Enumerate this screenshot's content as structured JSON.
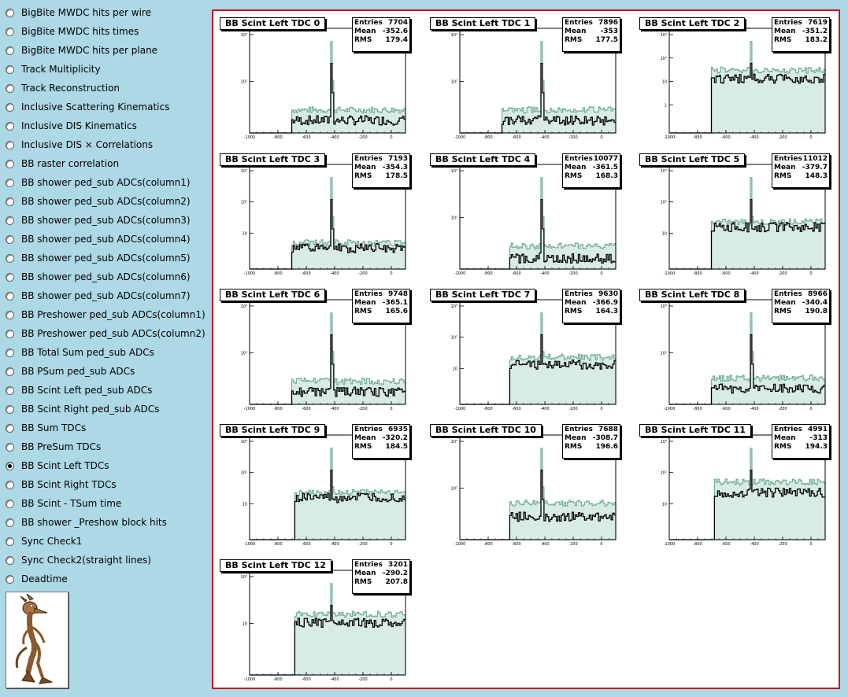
{
  "sidebar": {
    "items": [
      {
        "label": "BigBite MWDC hits per wire",
        "checked": false
      },
      {
        "label": "BigBite MWDC hits times",
        "checked": false
      },
      {
        "label": "BigBite MWDC hits per plane",
        "checked": false
      },
      {
        "label": "Track Multiplicity",
        "checked": false
      },
      {
        "label": "Track Reconstruction",
        "checked": false
      },
      {
        "label": "Inclusive Scattering Kinematics",
        "checked": false
      },
      {
        "label": "Inclusive DIS Kinematics",
        "checked": false
      },
      {
        "label": "Inclusive DIS × Correlations",
        "checked": false
      },
      {
        "label": "BB raster correlation",
        "checked": false
      },
      {
        "label": "BB shower ped_sub ADCs(column1)",
        "checked": false
      },
      {
        "label": "BB shower ped_sub ADCs(column2)",
        "checked": false
      },
      {
        "label": "BB shower ped_sub ADCs(column3)",
        "checked": false
      },
      {
        "label": "BB shower ped_sub ADCs(column4)",
        "checked": false
      },
      {
        "label": "BB shower ped_sub ADCs(column5)",
        "checked": false
      },
      {
        "label": "BB shower ped_sub ADCs(column6)",
        "checked": false
      },
      {
        "label": "BB shower ped_sub ADCs(column7)",
        "checked": false
      },
      {
        "label": "BB Preshower ped_sub ADCs(column1)",
        "checked": false
      },
      {
        "label": "BB Preshower ped_sub ADCs(column2)",
        "checked": false
      },
      {
        "label": "BB Total Sum ped_sub ADCs",
        "checked": false
      },
      {
        "label": "BB PSum ped_sub ADCs",
        "checked": false
      },
      {
        "label": "BB Scint Left ped_sub ADCs",
        "checked": false
      },
      {
        "label": "BB Scint Right ped_sub ADCs",
        "checked": false
      },
      {
        "label": "BB Sum TDCs",
        "checked": false
      },
      {
        "label": "BB PreSum TDCs",
        "checked": false
      },
      {
        "label": "BB Scint Left TDCs",
        "checked": true
      },
      {
        "label": "BB Scint Right TDCs",
        "checked": false
      },
      {
        "label": "BB Scint - TSum time",
        "checked": false
      },
      {
        "label": "BB shower _Preshow block hits",
        "checked": false
      },
      {
        "label": "Sync Check1",
        "checked": false
      },
      {
        "label": "Sync Check2(straight lines)",
        "checked": false
      },
      {
        "label": "Deadtime",
        "checked": false
      }
    ]
  },
  "logo_icon": "coyote-cartoon-icon",
  "stats_labels": {
    "entries": "Entries",
    "mean": "Mean",
    "rms": "RMS"
  },
  "x_ticks": [
    "-1000",
    "-800",
    "-600",
    "-400",
    "-200",
    "0"
  ],
  "colors": {
    "canvas_border": "#c8141e",
    "background": "#add8e6",
    "fill_hist": "#6aa88c",
    "line_hist": "#000000"
  },
  "chart_data": [
    {
      "type": "histogram",
      "title": "BB Scint Left TDC 0",
      "entries": "7704",
      "mean": "-352.6",
      "rms": "179.4",
      "xlim": [
        -1000,
        100
      ],
      "y_ticks": [
        "10³",
        "10²"
      ],
      "log_y": true,
      "onset": -700,
      "peak": -420,
      "fill_level": 0.22,
      "line_level": 0.12
    },
    {
      "type": "histogram",
      "title": "BB Scint Left TDC 1",
      "entries": "7896",
      "mean": "-353",
      "rms": "177.5",
      "xlim": [
        -1000,
        100
      ],
      "y_ticks": [
        "10³",
        "10²"
      ],
      "log_y": true,
      "onset": -700,
      "peak": -420,
      "fill_level": 0.22,
      "line_level": 0.12
    },
    {
      "type": "histogram",
      "title": "BB Scint Left TDC 2",
      "entries": "7619",
      "mean": "-351.2",
      "rms": "183.2",
      "xlim": [
        -1000,
        100
      ],
      "y_ticks": [
        "10³",
        "10²",
        "10",
        "1"
      ],
      "log_y": true,
      "onset": -700,
      "peak": -420,
      "fill_level": 0.6,
      "line_level": 0.52
    },
    {
      "type": "histogram",
      "title": "BB Scint Left TDC 3",
      "entries": "7193",
      "mean": "-354.3",
      "rms": "178.5",
      "xlim": [
        -1000,
        100
      ],
      "y_ticks": [
        "10³",
        "10²",
        "10"
      ],
      "log_y": true,
      "onset": -700,
      "peak": -420,
      "fill_level": 0.25,
      "line_level": 0.2
    },
    {
      "type": "histogram",
      "title": "BB Scint Left TDC 4",
      "entries": "10077",
      "mean": "-361.5",
      "rms": "168.3",
      "xlim": [
        -1000,
        100
      ],
      "y_ticks": [
        "10³",
        "10²"
      ],
      "log_y": true,
      "onset": -650,
      "peak": -420,
      "fill_level": 0.22,
      "line_level": 0.1
    },
    {
      "type": "histogram",
      "title": "BB Scint Left TDC 5",
      "entries": "11012",
      "mean": "-379.7",
      "rms": "148.3",
      "xlim": [
        -1000,
        100
      ],
      "y_ticks": [
        "10³",
        "10²",
        "10"
      ],
      "log_y": true,
      "onset": -700,
      "peak": -420,
      "fill_level": 0.45,
      "line_level": 0.4
    },
    {
      "type": "histogram",
      "title": "BB Scint Left TDC 6",
      "entries": "9748",
      "mean": "-365.1",
      "rms": "165.6",
      "xlim": [
        -1000,
        100
      ],
      "y_ticks": [
        "10³",
        "10²"
      ],
      "log_y": true,
      "onset": -700,
      "peak": -420,
      "fill_level": 0.22,
      "line_level": 0.12
    },
    {
      "type": "histogram",
      "title": "BB Scint Left TDC 7",
      "entries": "9630",
      "mean": "-366.9",
      "rms": "164.3",
      "xlim": [
        -1000,
        100
      ],
      "y_ticks": [
        "10³",
        "10²",
        "10"
      ],
      "log_y": true,
      "onset": -650,
      "peak": -420,
      "fill_level": 0.45,
      "line_level": 0.38
    },
    {
      "type": "histogram",
      "title": "BB Scint Left TDC 8",
      "entries": "8966",
      "mean": "-340.4",
      "rms": "190.8",
      "xlim": [
        -1000,
        100
      ],
      "y_ticks": [
        "10³",
        "10²"
      ],
      "log_y": true,
      "onset": -700,
      "peak": -420,
      "fill_level": 0.25,
      "line_level": 0.15
    },
    {
      "type": "histogram",
      "title": "BB Scint Left TDC 9",
      "entries": "6935",
      "mean": "-320.2",
      "rms": "184.5",
      "xlim": [
        -1000,
        100
      ],
      "y_ticks": [
        "10³",
        "10²",
        "10"
      ],
      "log_y": true,
      "onset": -680,
      "peak": -420,
      "fill_level": 0.45,
      "line_level": 0.4
    },
    {
      "type": "histogram",
      "title": "BB Scint Left TDC 10",
      "entries": "7688",
      "mean": "-308.7",
      "rms": "196.6",
      "xlim": [
        -1000,
        100
      ],
      "y_ticks": [
        "10³",
        "10²"
      ],
      "log_y": true,
      "onset": -650,
      "peak": -420,
      "fill_level": 0.35,
      "line_level": 0.22
    },
    {
      "type": "histogram",
      "title": "BB Scint Left TDC 11",
      "entries": "4991",
      "mean": "-313",
      "rms": "194.3",
      "xlim": [
        -1000,
        100
      ],
      "y_ticks": [
        "10³",
        "10²",
        "10"
      ],
      "log_y": true,
      "onset": -680,
      "peak": -420,
      "fill_level": 0.55,
      "line_level": 0.45
    },
    {
      "type": "histogram",
      "title": "BB Scint Left TDC 12",
      "entries": "3201",
      "mean": "-290.2",
      "rms": "207.8",
      "xlim": [
        -1000,
        100
      ],
      "y_ticks": [
        "10³",
        "10"
      ],
      "log_y": true,
      "onset": -680,
      "peak": -420,
      "fill_level": 0.58,
      "line_level": 0.5
    }
  ]
}
